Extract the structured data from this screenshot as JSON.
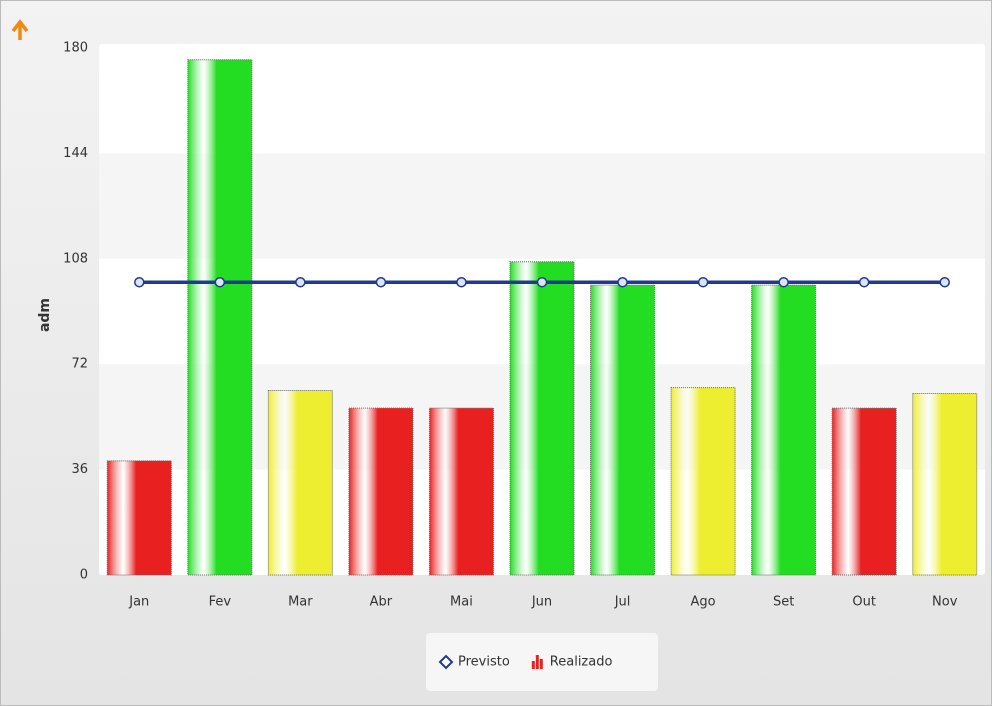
{
  "chart_data": {
    "type": "bar-line",
    "y_axis_label": "adm",
    "categories": [
      "Jan",
      "Fev",
      "Mar",
      "Abr",
      "Mai",
      "Jun",
      "Jul",
      "Ago",
      "Set",
      "Out",
      "Nov"
    ],
    "series": [
      {
        "name": "Previsto",
        "type": "line",
        "color": "#1f3a8f",
        "values": [
          100,
          100,
          100,
          100,
          100,
          100,
          100,
          100,
          100,
          100,
          100
        ]
      },
      {
        "name": "Realizado",
        "type": "bar",
        "color": "#e82020",
        "colors": [
          "#e82020",
          "#22dd22",
          "#eeee30",
          "#e82020",
          "#e82020",
          "#22dd22",
          "#22dd22",
          "#eeee30",
          "#22dd22",
          "#e82020",
          "#eeee30"
        ],
        "values": [
          39,
          176,
          63,
          57,
          57,
          107,
          99,
          64,
          99,
          57,
          62
        ]
      }
    ],
    "ylim": [
      0,
      180
    ],
    "yticks": [
      0,
      36,
      72,
      108,
      144,
      180
    ],
    "grid": false,
    "legend": "bottom"
  }
}
